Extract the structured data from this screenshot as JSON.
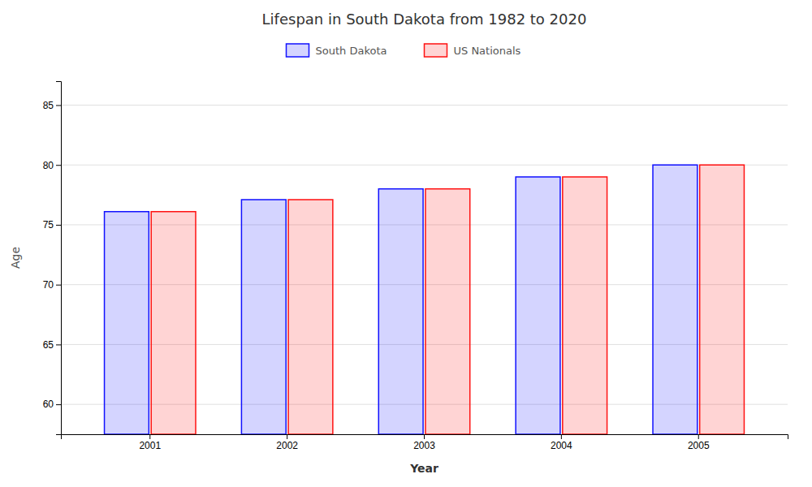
{
  "chart_data": {
    "type": "bar",
    "title": "Lifespan in South Dakota from 1982 to 2020",
    "xlabel": "Year",
    "ylabel": "Age",
    "categories": [
      "2001",
      "2002",
      "2003",
      "2004",
      "2005"
    ],
    "series": [
      {
        "name": "South Dakota",
        "color": "#1111ff",
        "values": [
          76.1,
          77.1,
          78.0,
          79.0,
          80.0
        ]
      },
      {
        "name": "US Nationals",
        "color": "#ff1111",
        "values": [
          76.1,
          77.1,
          78.0,
          79.0,
          80.0
        ]
      }
    ],
    "ylim": [
      57.5,
      87
    ],
    "yticks": [
      60,
      65,
      70,
      75,
      80,
      85
    ],
    "grid": true,
    "legend": "top"
  }
}
